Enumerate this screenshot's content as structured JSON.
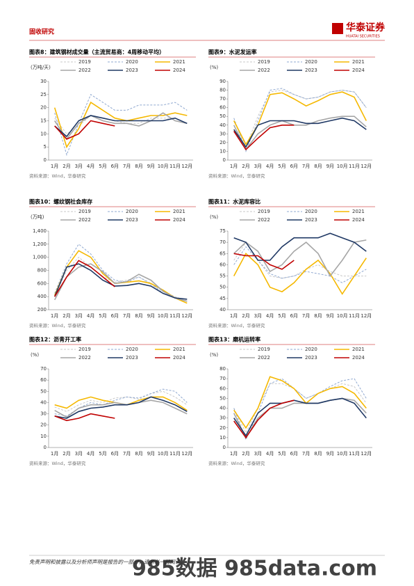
{
  "header": {
    "section": "固收研究",
    "logo": "华泰证券",
    "logo_en": "HUATAI SECURITIES"
  },
  "footer": {
    "disclaimer": "免责声明和披露以及分析师声明是报告的一部分，请务必一起阅读。",
    "watermark": "985数据 985data.com"
  },
  "chart_data": [
    {
      "type": "line",
      "title": "图表8：建筑钢材成交量（主流贸易商：4周移动平均）",
      "y_label": "(万吨/天)",
      "source": "资料来源：Wind，华泰研究",
      "categories": [
        "1月",
        "2月",
        "3月",
        "4月",
        "5月",
        "6月",
        "7月",
        "8月",
        "9月",
        "10月",
        "11月",
        "12月"
      ],
      "ylim": [
        0,
        30
      ],
      "yticks": [
        0,
        5,
        10,
        15,
        20,
        25,
        30
      ],
      "series": [
        {
          "name": "2019",
          "color": "#c8c8c8",
          "style": "dashed",
          "values": [
            16,
            10,
            13,
            17,
            16,
            15,
            14,
            14,
            16,
            16,
            16,
            14
          ]
        },
        {
          "name": "2020",
          "color": "#8fa8d0",
          "style": "dashed",
          "values": [
            18,
            2,
            14,
            25,
            22,
            19,
            19,
            21,
            21,
            21,
            22,
            19
          ]
        },
        {
          "name": "2021",
          "color": "#f5b800",
          "style": "solid",
          "values": [
            20,
            5,
            12,
            22,
            19,
            16,
            15,
            16,
            17,
            17,
            18,
            17
          ]
        },
        {
          "name": "2022",
          "color": "#a6a6a6",
          "style": "solid",
          "values": [
            15,
            8,
            14,
            17,
            15,
            14,
            14,
            13,
            15,
            18,
            15,
            14
          ]
        },
        {
          "name": "2023",
          "color": "#1f3864",
          "style": "solid",
          "values": [
            13,
            9,
            15,
            17,
            16,
            15,
            15,
            15,
            15,
            15,
            16,
            14
          ]
        },
        {
          "name": "2024",
          "color": "#c00000",
          "style": "solid",
          "values": [
            13,
            8,
            10,
            15,
            14,
            13,
            null,
            null,
            null,
            null,
            null,
            null
          ]
        }
      ]
    },
    {
      "type": "line",
      "title": "图表9：水泥发运率",
      "y_label": "(%)",
      "source": "资料来源：Wind，华泰研究",
      "categories": [
        "1月",
        "2月",
        "3月",
        "4月",
        "5月",
        "6月",
        "7月",
        "8月",
        "9月",
        "10月",
        "11月",
        "12月"
      ],
      "ylim": [
        0,
        90
      ],
      "yticks": [
        0,
        10,
        20,
        30,
        40,
        50,
        60,
        70,
        80,
        90
      ],
      "series": [
        {
          "name": "2019",
          "color": "#c8c8c8",
          "style": "dashed",
          "values": [
            45,
            15,
            50,
            78,
            80,
            75,
            70,
            72,
            78,
            80,
            78,
            60
          ]
        },
        {
          "name": "2020",
          "color": "#8fa8d0",
          "style": "dashed",
          "values": [
            48,
            10,
            45,
            80,
            82,
            75,
            70,
            72,
            78,
            80,
            78,
            60
          ]
        },
        {
          "name": "2021",
          "color": "#f5b800",
          "style": "solid",
          "values": [
            45,
            18,
            40,
            75,
            77,
            70,
            62,
            68,
            75,
            78,
            72,
            45
          ]
        },
        {
          "name": "2022",
          "color": "#a6a6a6",
          "style": "solid",
          "values": [
            40,
            12,
            30,
            40,
            45,
            40,
            40,
            45,
            48,
            50,
            50,
            38
          ]
        },
        {
          "name": "2023",
          "color": "#1f3864",
          "style": "solid",
          "values": [
            35,
            15,
            40,
            45,
            45,
            45,
            42,
            42,
            45,
            48,
            45,
            35
          ]
        },
        {
          "name": "2024",
          "color": "#c00000",
          "style": "solid",
          "values": [
            33,
            12,
            25,
            37,
            40,
            40,
            null,
            null,
            null,
            null,
            null,
            null
          ]
        }
      ]
    },
    {
      "type": "line",
      "title": "图表10：螺纹钢社会库存",
      "y_label": "(万吨)",
      "source": "资料来源：Wind，华泰研究",
      "categories": [
        "1月",
        "2月",
        "3月",
        "4月",
        "5月",
        "6月",
        "7月",
        "8月",
        "9月",
        "10月",
        "11月",
        "12月"
      ],
      "ylim": [
        200,
        1400
      ],
      "yticks": [
        200,
        400,
        600,
        800,
        {
          "value": 1000,
          "label": "1,000"
        },
        {
          "value": 1200,
          "label": "1,200"
        },
        {
          "value": 1400,
          "label": "1,400"
        }
      ],
      "series": [
        {
          "name": "2019",
          "color": "#c8c8c8",
          "style": "dashed",
          "values": [
            400,
            800,
            1000,
            850,
            700,
            620,
            650,
            700,
            580,
            480,
            400,
            330
          ]
        },
        {
          "name": "2020",
          "color": "#8fa8d0",
          "style": "dashed",
          "values": [
            450,
            900,
            1200,
            1050,
            800,
            650,
            620,
            700,
            600,
            450,
            380,
            330
          ]
        },
        {
          "name": "2021",
          "color": "#f5b800",
          "style": "solid",
          "values": [
            420,
            850,
            1100,
            1000,
            750,
            600,
            620,
            640,
            600,
            500,
            380,
            300
          ]
        },
        {
          "name": "2022",
          "color": "#a6a6a6",
          "style": "solid",
          "values": [
            350,
            700,
            850,
            900,
            780,
            600,
            630,
            740,
            650,
            480,
            380,
            330
          ]
        },
        {
          "name": "2023",
          "color": "#1f3864",
          "style": "solid",
          "values": [
            400,
            850,
            900,
            800,
            650,
            560,
            570,
            600,
            560,
            450,
            380,
            360
          ]
        },
        {
          "name": "2024",
          "color": "#c00000",
          "style": "solid",
          "values": [
            400,
            700,
            950,
            850,
            700,
            550,
            null,
            null,
            null,
            null,
            null,
            null
          ]
        }
      ]
    },
    {
      "type": "line",
      "title": "图表11：水泥库容比",
      "y_label": "(%)",
      "source": "资料来源：Wind，华泰研究",
      "categories": [
        "1月",
        "2月",
        "3月",
        "4月",
        "5月",
        "6月",
        "7月",
        "8月",
        "9月",
        "10月",
        "11月",
        "12月"
      ],
      "ylim": [
        40,
        75
      ],
      "yticks": [
        40,
        45,
        50,
        55,
        60,
        65,
        70,
        75
      ],
      "series": [
        {
          "name": "2019",
          "color": "#c8c8c8",
          "style": "dashed",
          "values": [
            62,
            70,
            62,
            55,
            54,
            55,
            58,
            60,
            57,
            55,
            55,
            55
          ]
        },
        {
          "name": "2020",
          "color": "#8fa8d0",
          "style": "dashed",
          "values": [
            60,
            68,
            62,
            56,
            54,
            55,
            57,
            56,
            55,
            52,
            55,
            58
          ]
        },
        {
          "name": "2021",
          "color": "#f5b800",
          "style": "solid",
          "values": [
            55,
            65,
            60,
            50,
            48,
            52,
            58,
            62,
            56,
            47,
            55,
            63
          ]
        },
        {
          "name": "2022",
          "color": "#a6a6a6",
          "style": "solid",
          "values": [
            65,
            70,
            66,
            57,
            60,
            66,
            70,
            65,
            55,
            62,
            70,
            71
          ]
        },
        {
          "name": "2023",
          "color": "#1f3864",
          "style": "solid",
          "values": [
            72,
            70,
            62,
            62,
            68,
            72,
            72,
            72,
            74,
            72,
            70,
            66
          ]
        },
        {
          "name": "2024",
          "color": "#c00000",
          "style": "solid",
          "values": [
            65,
            64,
            64,
            60,
            58,
            62,
            null,
            null,
            null,
            null,
            null,
            null
          ]
        }
      ]
    },
    {
      "type": "line",
      "title": "图表12：沥青开工率",
      "y_label": "(%)",
      "source": "资料来源：Wind，华泰研究",
      "categories": [
        "1月",
        "2月",
        "3月",
        "4月",
        "5月",
        "6月",
        "7月",
        "8月",
        "9月",
        "10月",
        "11月",
        "12月"
      ],
      "ylim": [
        0,
        70
      ],
      "yticks": [
        0,
        10,
        20,
        30,
        40,
        50,
        60,
        70
      ],
      "series": [
        {
          "name": "2019",
          "color": "#c8c8c8",
          "style": "dashed",
          "values": [
            36,
            32,
            38,
            42,
            40,
            44,
            45,
            43,
            48,
            50,
            45,
            38
          ]
        },
        {
          "name": "2020",
          "color": "#8fa8d0",
          "style": "dashed",
          "values": [
            30,
            28,
            35,
            40,
            38,
            42,
            45,
            44,
            48,
            52,
            50,
            40
          ]
        },
        {
          "name": "2021",
          "color": "#f5b800",
          "style": "solid",
          "values": [
            38,
            35,
            42,
            45,
            42,
            40,
            38,
            42,
            45,
            45,
            40,
            33
          ]
        },
        {
          "name": "2022",
          "color": "#a6a6a6",
          "style": "solid",
          "values": [
            33,
            27,
            35,
            38,
            38,
            40,
            38,
            40,
            42,
            40,
            35,
            30
          ]
        },
        {
          "name": "2023",
          "color": "#1f3864",
          "style": "solid",
          "values": [
            28,
            26,
            32,
            35,
            36,
            38,
            38,
            40,
            45,
            42,
            38,
            32
          ]
        },
        {
          "name": "2024",
          "color": "#c00000",
          "style": "solid",
          "values": [
            28,
            24,
            26,
            30,
            28,
            26,
            null,
            null,
            null,
            null,
            null,
            null
          ]
        }
      ]
    },
    {
      "type": "line",
      "title": "图表13：磨机运转率",
      "y_label": "(%)",
      "source": "资料来源：Wind，华泰研究",
      "categories": [
        "1月",
        "2月",
        "3月",
        "4月",
        "5月",
        "6月",
        "7月",
        "8月",
        "9月",
        "10月",
        "11月",
        "12月"
      ],
      "ylim": [
        0,
        80
      ],
      "yticks": [
        0,
        10,
        20,
        30,
        40,
        50,
        60,
        70,
        80
      ],
      "series": [
        {
          "name": "2019",
          "color": "#c8c8c8",
          "style": "dashed",
          "values": [
            40,
            15,
            40,
            65,
            65,
            60,
            50,
            55,
            60,
            65,
            62,
            45
          ]
        },
        {
          "name": "2020",
          "color": "#8fa8d0",
          "style": "dashed",
          "values": [
            40,
            8,
            35,
            65,
            70,
            60,
            50,
            55,
            62,
            68,
            70,
            50
          ]
        },
        {
          "name": "2021",
          "color": "#f5b800",
          "style": "solid",
          "values": [
            38,
            20,
            40,
            72,
            68,
            60,
            45,
            55,
            60,
            62,
            55,
            40
          ]
        },
        {
          "name": "2022",
          "color": "#a6a6a6",
          "style": "solid",
          "values": [
            35,
            10,
            30,
            40,
            40,
            45,
            45,
            45,
            48,
            50,
            48,
            35
          ]
        },
        {
          "name": "2023",
          "color": "#1f3864",
          "style": "solid",
          "values": [
            30,
            12,
            35,
            45,
            45,
            48,
            45,
            45,
            48,
            50,
            45,
            30
          ]
        },
        {
          "name": "2024",
          "color": "#c00000",
          "style": "solid",
          "values": [
            27,
            10,
            28,
            40,
            45,
            48,
            null,
            null,
            null,
            null,
            null,
            null
          ]
        }
      ]
    }
  ]
}
